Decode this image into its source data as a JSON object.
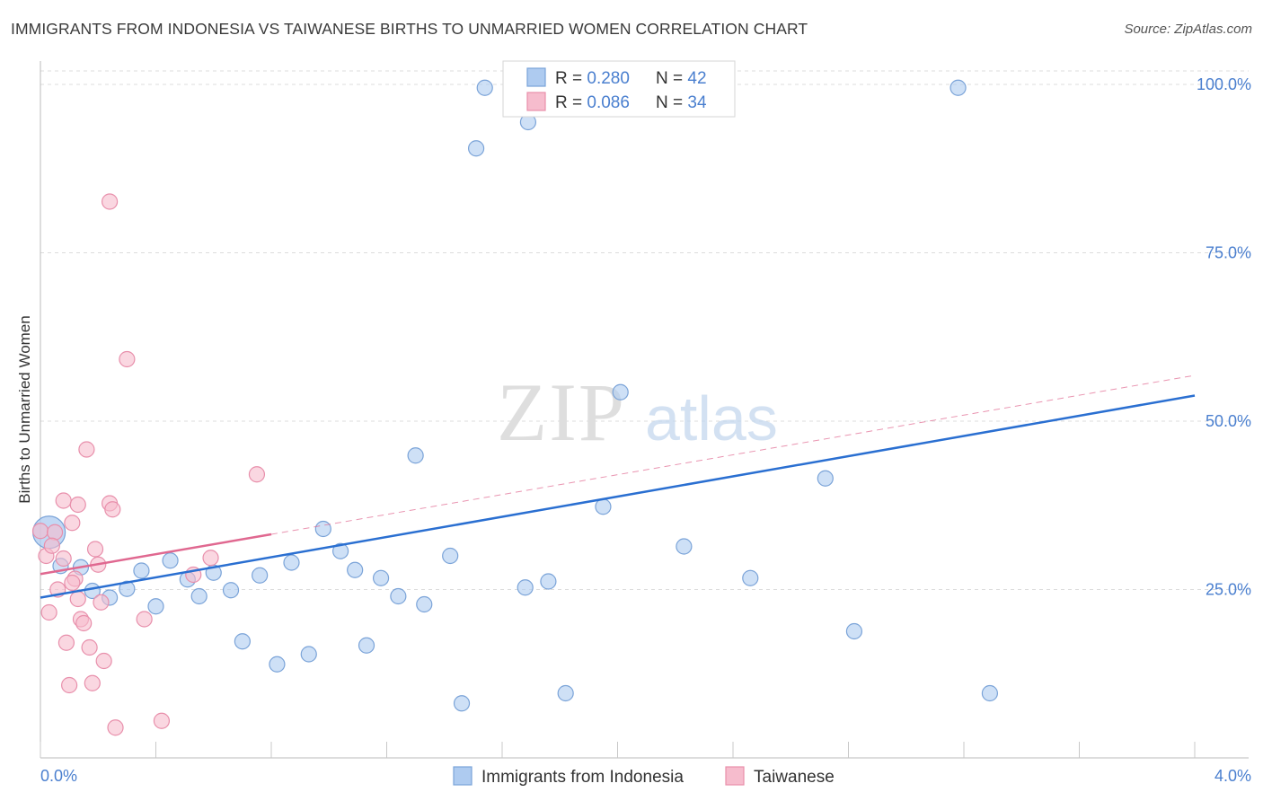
{
  "title": "IMMIGRANTS FROM INDONESIA VS TAIWANESE BIRTHS TO UNMARRIED WOMEN CORRELATION CHART",
  "source": "Source: ZipAtlas.com",
  "watermark": {
    "zip": "ZIP",
    "atlas": "atlas"
  },
  "colors": {
    "blue_fill": "#aecbf0",
    "blue_stroke": "#7aa3d8",
    "blue_line": "#2a6fd1",
    "pink_fill": "#f6bccd",
    "pink_stroke": "#e88fab",
    "pink_line": "#e06890",
    "axis_text": "#4a7fcf",
    "grid": "#dcdcdc"
  },
  "legend": {
    "rows": [
      {
        "r_label": "R = ",
        "r_value": "0.280",
        "n_label": "N = ",
        "n_value": "42",
        "series": "blue"
      },
      {
        "r_label": "R = ",
        "r_value": "0.086",
        "n_label": "N = ",
        "n_value": "34",
        "series": "pink"
      }
    ]
  },
  "chart_data": {
    "type": "scatter",
    "title": "IMMIGRANTS FROM INDONESIA VS TAIWANESE BIRTHS TO UNMARRIED WOMEN CORRELATION CHART",
    "xlabel": "",
    "ylabel": "Births to Unmarried Women",
    "xlim": [
      0.0,
      4.0
    ],
    "ylim": [
      0.0,
      102.0
    ],
    "x_tick_labels": [
      "0.0%",
      "4.0%"
    ],
    "y_ticks": [
      25,
      50,
      75,
      100
    ],
    "y_tick_labels": [
      "25.0%",
      "50.0%",
      "75.0%",
      "100.0%"
    ],
    "grid": true,
    "legend_position": "bottom",
    "series": [
      {
        "name": "Immigrants from Indonesia",
        "color": "blue",
        "trend": {
          "x": [
            0.0,
            4.0
          ],
          "y": [
            23.8,
            53.8
          ],
          "style": "solid"
        },
        "points": [
          {
            "x": 0.03,
            "y": 33.5,
            "big": true
          },
          {
            "x": 0.07,
            "y": 28.5
          },
          {
            "x": 0.14,
            "y": 28.3
          },
          {
            "x": 0.18,
            "y": 24.8
          },
          {
            "x": 0.24,
            "y": 23.8
          },
          {
            "x": 0.3,
            "y": 25.1
          },
          {
            "x": 0.35,
            "y": 27.8
          },
          {
            "x": 0.4,
            "y": 22.5
          },
          {
            "x": 0.45,
            "y": 29.3
          },
          {
            "x": 0.51,
            "y": 26.5
          },
          {
            "x": 0.55,
            "y": 24.0
          },
          {
            "x": 0.6,
            "y": 27.5
          },
          {
            "x": 0.66,
            "y": 24.9
          },
          {
            "x": 0.7,
            "y": 17.3
          },
          {
            "x": 0.76,
            "y": 27.1
          },
          {
            "x": 0.82,
            "y": 13.9
          },
          {
            "x": 0.87,
            "y": 29.0
          },
          {
            "x": 0.93,
            "y": 15.4
          },
          {
            "x": 0.98,
            "y": 34.0
          },
          {
            "x": 1.04,
            "y": 30.7
          },
          {
            "x": 1.09,
            "y": 27.9
          },
          {
            "x": 1.13,
            "y": 16.7
          },
          {
            "x": 1.18,
            "y": 26.7
          },
          {
            "x": 1.24,
            "y": 24.0
          },
          {
            "x": 1.3,
            "y": 44.9
          },
          {
            "x": 1.33,
            "y": 22.8
          },
          {
            "x": 1.42,
            "y": 30.0
          },
          {
            "x": 1.46,
            "y": 8.1
          },
          {
            "x": 1.51,
            "y": 90.5
          },
          {
            "x": 1.54,
            "y": 99.5
          },
          {
            "x": 1.68,
            "y": 25.3
          },
          {
            "x": 1.69,
            "y": 94.4
          },
          {
            "x": 1.76,
            "y": 26.2
          },
          {
            "x": 1.82,
            "y": 9.6
          },
          {
            "x": 1.95,
            "y": 37.3
          },
          {
            "x": 2.01,
            "y": 54.3
          },
          {
            "x": 2.23,
            "y": 31.4
          },
          {
            "x": 2.46,
            "y": 26.7
          },
          {
            "x": 2.72,
            "y": 41.5
          },
          {
            "x": 2.82,
            "y": 18.8
          },
          {
            "x": 3.18,
            "y": 99.5
          },
          {
            "x": 3.29,
            "y": 9.6
          }
        ]
      },
      {
        "name": "Taiwanese",
        "color": "pink",
        "trend": {
          "x": [
            0.0,
            0.8
          ],
          "y": [
            27.3,
            33.2
          ],
          "style": "solid",
          "extension": {
            "x": [
              0.8,
              4.0
            ],
            "y": [
              33.2,
              56.8
            ],
            "style": "dashed"
          }
        },
        "points": [
          {
            "x": 0.0,
            "y": 33.7
          },
          {
            "x": 0.02,
            "y": 30.0
          },
          {
            "x": 0.03,
            "y": 21.6
          },
          {
            "x": 0.05,
            "y": 33.5
          },
          {
            "x": 0.06,
            "y": 25.0
          },
          {
            "x": 0.08,
            "y": 29.6
          },
          {
            "x": 0.08,
            "y": 38.2
          },
          {
            "x": 0.09,
            "y": 17.1
          },
          {
            "x": 0.1,
            "y": 10.8
          },
          {
            "x": 0.11,
            "y": 34.9
          },
          {
            "x": 0.12,
            "y": 26.6
          },
          {
            "x": 0.13,
            "y": 23.6
          },
          {
            "x": 0.13,
            "y": 37.6
          },
          {
            "x": 0.14,
            "y": 20.6
          },
          {
            "x": 0.15,
            "y": 20.0
          },
          {
            "x": 0.16,
            "y": 45.8
          },
          {
            "x": 0.17,
            "y": 16.4
          },
          {
            "x": 0.18,
            "y": 11.1
          },
          {
            "x": 0.19,
            "y": 31.0
          },
          {
            "x": 0.2,
            "y": 28.7
          },
          {
            "x": 0.21,
            "y": 23.1
          },
          {
            "x": 0.22,
            "y": 14.4
          },
          {
            "x": 0.24,
            "y": 82.6
          },
          {
            "x": 0.24,
            "y": 37.8
          },
          {
            "x": 0.25,
            "y": 36.9
          },
          {
            "x": 0.26,
            "y": 4.5
          },
          {
            "x": 0.3,
            "y": 59.2
          },
          {
            "x": 0.36,
            "y": 20.6
          },
          {
            "x": 0.42,
            "y": 5.5
          },
          {
            "x": 0.53,
            "y": 27.2
          },
          {
            "x": 0.59,
            "y": 29.7
          },
          {
            "x": 0.75,
            "y": 42.1
          },
          {
            "x": 0.04,
            "y": 31.5
          },
          {
            "x": 0.11,
            "y": 26.0
          }
        ]
      }
    ]
  }
}
